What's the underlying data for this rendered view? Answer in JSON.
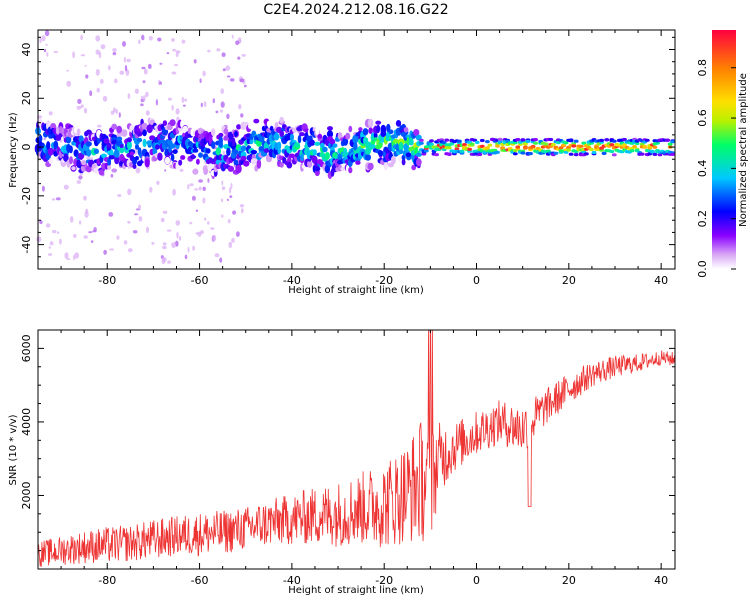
{
  "figure": {
    "title": "C2E4.2024.212.08.16.G22"
  },
  "colors": {
    "snr_line": "#ee3333",
    "axis": "#000000",
    "background": "#ffffff",
    "colormap": [
      "#ffffff",
      "#d9a8f5",
      "#8a00ff",
      "#0000ff",
      "#00c8ff",
      "#00ff66",
      "#b9f000",
      "#ffe000",
      "#ff8000",
      "#ff0040"
    ]
  },
  "chart_data": [
    {
      "name": "spectrogram",
      "type": "heatmap",
      "xlabel": "Height of straight line (km)",
      "ylabel": "Frequency (Hz)",
      "xlim": [
        -95,
        43
      ],
      "ylim": [
        -50,
        48
      ],
      "xticks": [
        -80,
        -60,
        -40,
        -20,
        0,
        20,
        40
      ],
      "yticks": [
        -40,
        -20,
        0,
        20,
        40
      ],
      "grid": false,
      "description_points": [
        {
          "x": -90,
          "freq": 2,
          "amp": 0.35
        },
        {
          "x": -70,
          "freq": 0,
          "amp": 0.35
        },
        {
          "x": -50,
          "freq": 1,
          "amp": 0.4
        },
        {
          "x": -30,
          "freq": 2,
          "amp": 0.45
        },
        {
          "x": -10,
          "freq": 0,
          "amp": 0.55
        },
        {
          "x": 0,
          "freq": 0,
          "amp": 0.8
        },
        {
          "x": 10,
          "freq": 1,
          "amp": 0.95
        },
        {
          "x": 20,
          "freq": 0,
          "amp": 0.9
        },
        {
          "x": 30,
          "freq": 0,
          "amp": 0.85
        },
        {
          "x": 40,
          "freq": 0,
          "amp": 0.8
        }
      ],
      "colorbar": {
        "label": "Normalized spectral amplitude",
        "range": [
          0.0,
          0.95
        ],
        "ticks": [
          0.0,
          0.2,
          0.4,
          0.6,
          0.8
        ],
        "tick_labels": [
          "0.0",
          "0.2",
          "0.4",
          "0.6",
          "0.8"
        ]
      }
    },
    {
      "name": "snr",
      "type": "line",
      "xlabel": "Height of straight line (km)",
      "ylabel": "SNR (10 * v/v)",
      "xlim": [
        -95,
        43
      ],
      "ylim": [
        0,
        6500
      ],
      "xticks": [
        -80,
        -60,
        -40,
        -20,
        0,
        20,
        40
      ],
      "yticks": [
        2000,
        4000,
        6000
      ],
      "grid": false,
      "series": [
        {
          "x": [
            -95,
            -90,
            -85,
            -80,
            -75,
            -70,
            -65,
            -60,
            -55,
            -50,
            -45,
            -40,
            -35,
            -30,
            -25,
            -20,
            -15,
            -12,
            -10,
            -8,
            -5,
            0,
            5,
            10,
            15,
            20,
            25,
            30,
            35,
            40,
            43
          ],
          "y": [
            400,
            500,
            600,
            650,
            700,
            800,
            900,
            950,
            1000,
            1100,
            1250,
            1350,
            1450,
            1500,
            1650,
            1750,
            2100,
            2400,
            2300,
            3000,
            3300,
            3700,
            4000,
            3800,
            4400,
            4900,
            5300,
            5500,
            5600,
            5750,
            5700
          ],
          "amp": [
            350,
            400,
            450,
            500,
            500,
            550,
            550,
            600,
            600,
            600,
            650,
            700,
            800,
            900,
            1000,
            1200,
            1400,
            1700,
            1500,
            1000,
            700,
            600,
            600,
            700,
            500,
            450,
            350,
            300,
            250,
            200,
            200
          ]
        }
      ]
    }
  ]
}
